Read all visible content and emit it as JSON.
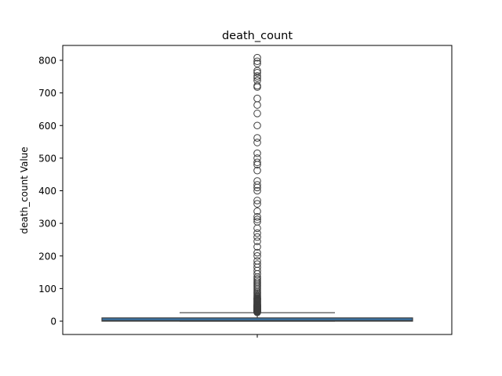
{
  "chart_data": {
    "type": "box",
    "title": "death_count",
    "xlabel": "",
    "ylabel": "death_count Value",
    "ylim": [
      -40,
      815
    ],
    "yticks": [
      0,
      100,
      200,
      300,
      400,
      500,
      600,
      700,
      800
    ],
    "ytick_labels": [
      "0",
      "100",
      "200",
      "300",
      "400",
      "500",
      "600",
      "700",
      "800"
    ],
    "grid": false,
    "legend": "none",
    "box": {
      "q1": 0,
      "median": 2,
      "q3": 10,
      "whisker_low": 0,
      "whisker_high": 26
    },
    "outliers": [
      27,
      28,
      29,
      30,
      31,
      32,
      33,
      34,
      35,
      36,
      37,
      38,
      39,
      40,
      41,
      42,
      43,
      44,
      45,
      46,
      47,
      48,
      49,
      50,
      52,
      54,
      56,
      58,
      60,
      62,
      64,
      66,
      68,
      70,
      72,
      75,
      78,
      82,
      86,
      90,
      95,
      100,
      105,
      110,
      115,
      120,
      125,
      130,
      135,
      145,
      155,
      165,
      175,
      185,
      200,
      210,
      228,
      245,
      258,
      270,
      285,
      305,
      312,
      320,
      337,
      360,
      370,
      400,
      410,
      418,
      430,
      462,
      480,
      487,
      500,
      515,
      548,
      562,
      600,
      637,
      663,
      683,
      718,
      722,
      738,
      746,
      752,
      762,
      768,
      790,
      797,
      808
    ],
    "colors": {
      "box_fill": "#3a75a8",
      "box_edge": "#3d3d3d",
      "whisker": "#3d3d3d",
      "outlier_edge": "#3d3d3d"
    }
  }
}
